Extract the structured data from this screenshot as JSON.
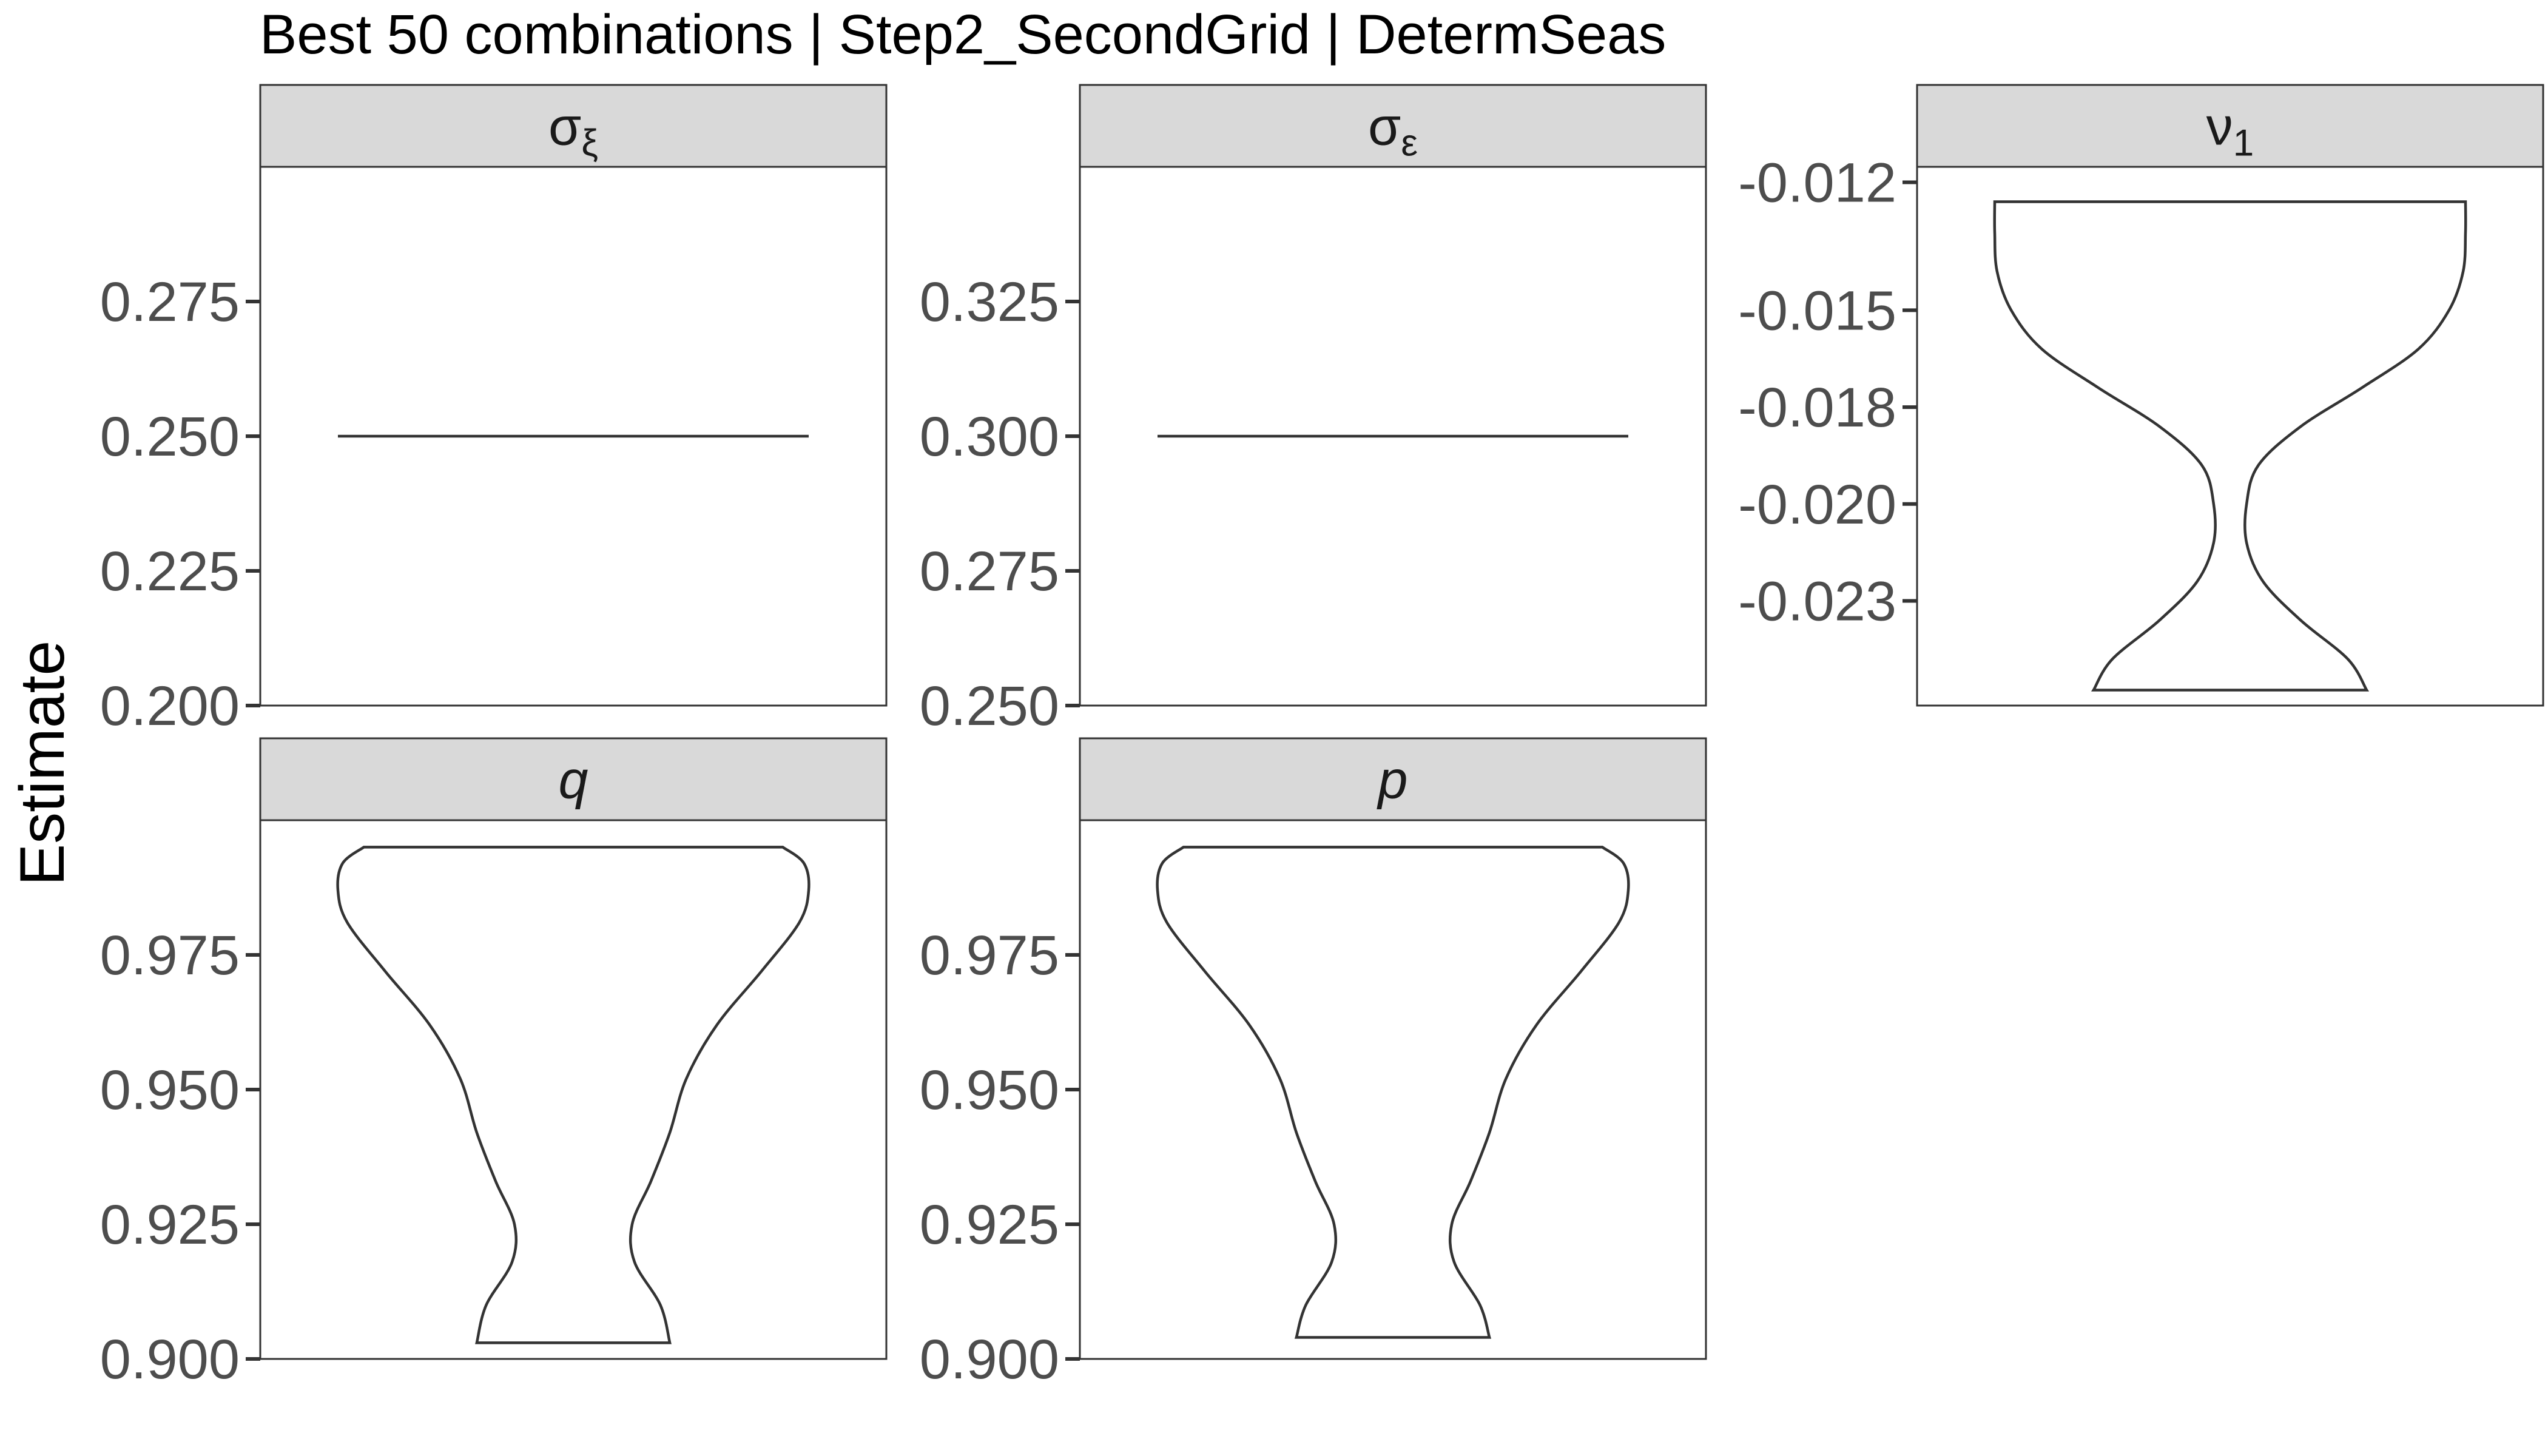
{
  "chart_data": {
    "type": "violin",
    "title": "Best 50 combinations | Step2_SecondGrid | DetermSeas",
    "ylabel": "Estimate",
    "xlabel": "",
    "grid": false,
    "panels": [
      {
        "label": "σξ",
        "label_base": "σ",
        "label_sub": "ξ",
        "label_italic": false,
        "ylim": [
          0.2,
          0.3
        ],
        "ticks": [
          "0.200",
          "0.225",
          "0.250",
          "0.275"
        ],
        "tick_values": [
          0.2,
          0.225,
          0.25,
          0.275
        ],
        "distribution": "constant",
        "constant_value": 0.25,
        "profile": []
      },
      {
        "label": "σε",
        "label_base": "σ",
        "label_sub": "ε",
        "label_italic": false,
        "ylim": [
          0.25,
          0.35
        ],
        "ticks": [
          "0.250",
          "0.275",
          "0.300",
          "0.325"
        ],
        "tick_values": [
          0.25,
          0.275,
          0.3,
          0.325
        ],
        "distribution": "constant",
        "constant_value": 0.3,
        "profile": []
      },
      {
        "label": "ν1",
        "label_base": "ν",
        "label_sub": "1",
        "label_sub_style": "subscript",
        "label_italic": false,
        "ylim": [
          -0.0257,
          -0.0118
        ],
        "ticks": [
          "-0.023",
          "-0.020",
          "-0.018",
          "-0.015",
          "-0.012"
        ],
        "tick_values": [
          -0.023,
          -0.0205,
          -0.018,
          -0.0155,
          -0.0122
        ],
        "distribution": "violin",
        "profile": [
          {
            "y": -0.0253,
            "w": 0.58
          },
          {
            "y": -0.0245,
            "w": 0.5
          },
          {
            "y": -0.0235,
            "w": 0.3
          },
          {
            "y": -0.0225,
            "w": 0.14
          },
          {
            "y": -0.0215,
            "w": 0.07
          },
          {
            "y": -0.0205,
            "w": 0.07
          },
          {
            "y": -0.0195,
            "w": 0.12
          },
          {
            "y": -0.0185,
            "w": 0.3
          },
          {
            "y": -0.0175,
            "w": 0.56
          },
          {
            "y": -0.0165,
            "w": 0.8
          },
          {
            "y": -0.0155,
            "w": 0.93
          },
          {
            "y": -0.0145,
            "w": 0.99
          },
          {
            "y": -0.0135,
            "w": 1.0
          },
          {
            "y": -0.0127,
            "w": 1.0
          }
        ]
      },
      {
        "label": "q",
        "label_italic": true,
        "ylim": [
          0.9,
          1.0
        ],
        "ticks": [
          "0.900",
          "0.925",
          "0.950",
          "0.975"
        ],
        "tick_values": [
          0.9,
          0.925,
          0.95,
          0.975
        ],
        "distribution": "violin",
        "profile": [
          {
            "y": 0.903,
            "w": 0.41
          },
          {
            "y": 0.91,
            "w": 0.37
          },
          {
            "y": 0.918,
            "w": 0.26
          },
          {
            "y": 0.925,
            "w": 0.25
          },
          {
            "y": 0.933,
            "w": 0.33
          },
          {
            "y": 0.942,
            "w": 0.41
          },
          {
            "y": 0.952,
            "w": 0.48
          },
          {
            "y": 0.962,
            "w": 0.61
          },
          {
            "y": 0.972,
            "w": 0.8
          },
          {
            "y": 0.981,
            "w": 0.96
          },
          {
            "y": 0.987,
            "w": 1.0
          },
          {
            "y": 0.992,
            "w": 0.98
          },
          {
            "y": 0.995,
            "w": 0.89
          }
        ]
      },
      {
        "label": "p",
        "label_italic": true,
        "ylim": [
          0.9,
          1.0
        ],
        "ticks": [
          "0.900",
          "0.925",
          "0.950",
          "0.975"
        ],
        "tick_values": [
          0.9,
          0.925,
          0.95,
          0.975
        ],
        "distribution": "violin",
        "profile": [
          {
            "y": 0.904,
            "w": 0.41
          },
          {
            "y": 0.91,
            "w": 0.37
          },
          {
            "y": 0.918,
            "w": 0.26
          },
          {
            "y": 0.925,
            "w": 0.25
          },
          {
            "y": 0.933,
            "w": 0.33
          },
          {
            "y": 0.942,
            "w": 0.41
          },
          {
            "y": 0.952,
            "w": 0.48
          },
          {
            "y": 0.962,
            "w": 0.61
          },
          {
            "y": 0.972,
            "w": 0.8
          },
          {
            "y": 0.981,
            "w": 0.96
          },
          {
            "y": 0.987,
            "w": 1.0
          },
          {
            "y": 0.992,
            "w": 0.98
          },
          {
            "y": 0.995,
            "w": 0.89
          }
        ]
      }
    ]
  }
}
